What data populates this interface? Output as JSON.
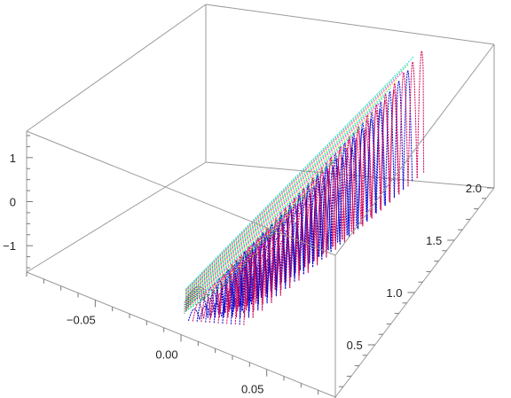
{
  "chart_data": {
    "type": "scatter",
    "dimension": "3d",
    "title": "",
    "xlabel": "",
    "ylabel": "",
    "zlabel": "",
    "axes": {
      "x": {
        "range": [
          -0.09,
          0.09
        ],
        "ticks": [
          {
            "value": -0.05,
            "label": "−0.05"
          },
          {
            "value": 0.0,
            "label": "0.00"
          },
          {
            "value": 0.05,
            "label": "0.05"
          }
        ]
      },
      "y": {
        "range": [
          0.0,
          2.0
        ],
        "ticks": [
          {
            "value": 0.5,
            "label": "0.5"
          },
          {
            "value": 1.0,
            "label": "1.0"
          },
          {
            "value": 1.5,
            "label": "1.5"
          },
          {
            "value": 2.0,
            "label": "2.0"
          }
        ]
      },
      "z": {
        "range": [
          -1.6,
          1.6
        ],
        "ticks": [
          {
            "value": 1,
            "label": "1"
          },
          {
            "value": 0,
            "label": "0"
          },
          {
            "value": -1,
            "label": "−1"
          }
        ]
      }
    },
    "box": true,
    "grid": false,
    "legend": "none",
    "series": [
      {
        "color": "#0000cc",
        "style": "dotted-arcs",
        "points": [
          [
            -0.006,
            0.16,
            -1.0
          ],
          [
            0.004,
            0.64,
            0.5
          ],
          [
            0.012,
            1.05,
            1.2
          ],
          [
            0.02,
            1.55,
            1.0
          ]
        ]
      },
      {
        "color": "#cc0055",
        "style": "dotted-arcs",
        "points": [
          [
            -0.004,
            0.2,
            -1.1
          ],
          [
            0.004,
            0.62,
            0.0
          ],
          [
            0.012,
            1.1,
            0.9
          ],
          [
            0.024,
            1.7,
            0.4
          ]
        ]
      },
      {
        "color": "#ff00ff",
        "style": "dotted-arcs",
        "points": [
          [
            -0.004,
            0.24,
            -1.2
          ],
          [
            0.004,
            0.7,
            -0.3
          ],
          [
            0.012,
            1.15,
            0.5
          ]
        ]
      },
      {
        "color": "#00cc44",
        "style": "dotted-lines",
        "points": [
          [
            -0.004,
            0.3,
            -1.3
          ],
          [
            0.008,
            1.0,
            -0.6
          ],
          [
            0.02,
            1.8,
            0.0
          ]
        ]
      },
      {
        "color": "#00cccc",
        "style": "dotted-lines",
        "points": [
          [
            -0.004,
            0.25,
            -1.4
          ],
          [
            0.006,
            0.7,
            -1.0
          ],
          [
            0.014,
            1.3,
            -0.5
          ]
        ]
      },
      {
        "color": "#eedd00",
        "style": "dotted-lines",
        "points": [
          [
            -0.004,
            0.28,
            -1.5
          ],
          [
            0.008,
            0.8,
            -1.1
          ],
          [
            0.02,
            1.6,
            -0.4
          ]
        ]
      }
    ]
  }
}
